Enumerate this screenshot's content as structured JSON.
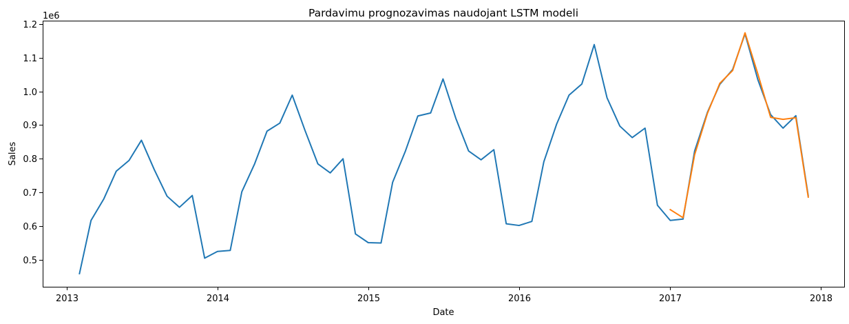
{
  "chart_data": {
    "type": "line",
    "title": "Pardavimu prognozavimas naudojant LSTM modeli",
    "xlabel": "Date",
    "ylabel": "Sales",
    "y_offset_text": "1e6",
    "x_tick_labels": [
      "2013",
      "2014",
      "2015",
      "2016",
      "2017",
      "2018"
    ],
    "x_ticks": [
      "2013-01-01",
      "2014-01-01",
      "2015-01-01",
      "2016-01-01",
      "2017-01-01",
      "2018-01-01"
    ],
    "y_ticks": [
      0.5,
      0.6,
      0.7,
      0.8,
      0.9,
      1.0,
      1.1,
      1.2
    ],
    "y_tick_labels": [
      "0.5",
      "0.6",
      "0.7",
      "0.8",
      "0.9",
      "1.0",
      "1.1",
      "1.2"
    ],
    "xlim": [
      "2012-11-04",
      "2018-02-26"
    ],
    "ylim": [
      0.42,
      1.21
    ],
    "y_unit_multiplier": 1000000,
    "grid": false,
    "legend": "none",
    "series": [
      {
        "color": "#1f77b4",
        "x": [
          "2013-02-01",
          "2013-03-01",
          "2013-04-01",
          "2013-05-01",
          "2013-06-01",
          "2013-07-01",
          "2013-08-01",
          "2013-09-01",
          "2013-10-01",
          "2013-11-01",
          "2013-12-01",
          "2014-01-01",
          "2014-02-01",
          "2014-03-01",
          "2014-04-01",
          "2014-05-01",
          "2014-06-01",
          "2014-07-01",
          "2014-08-01",
          "2014-09-01",
          "2014-10-01",
          "2014-11-01",
          "2014-12-01",
          "2015-01-01",
          "2015-02-01",
          "2015-03-01",
          "2015-04-01",
          "2015-05-01",
          "2015-06-01",
          "2015-07-01",
          "2015-08-01",
          "2015-09-01",
          "2015-10-01",
          "2015-11-01",
          "2015-12-01",
          "2016-01-01",
          "2016-02-01",
          "2016-03-01",
          "2016-04-01",
          "2016-05-01",
          "2016-06-01",
          "2016-07-01",
          "2016-08-01",
          "2016-09-01",
          "2016-10-01",
          "2016-11-01",
          "2016-12-01",
          "2017-01-01",
          "2017-02-01",
          "2017-03-01",
          "2017-04-01",
          "2017-05-01",
          "2017-06-01",
          "2017-07-01",
          "2017-08-01",
          "2017-09-01",
          "2017-10-01",
          "2017-11-01",
          "2017-12-01"
        ],
        "values": [
          0.459,
          0.617,
          0.681,
          0.763,
          0.795,
          0.855,
          0.768,
          0.689,
          0.656,
          0.691,
          0.505,
          0.525,
          0.528,
          0.702,
          0.785,
          0.882,
          0.906,
          0.989,
          0.884,
          0.785,
          0.758,
          0.8,
          0.577,
          0.551,
          0.55,
          0.73,
          0.823,
          0.927,
          0.936,
          1.037,
          0.92,
          0.823,
          0.797,
          0.827,
          0.607,
          0.602,
          0.614,
          0.791,
          0.903,
          0.989,
          1.022,
          1.139,
          0.981,
          0.897,
          0.863,
          0.891,
          0.662,
          0.617,
          0.621,
          0.823,
          0.938,
          1.021,
          1.065,
          1.171,
          1.035,
          0.931,
          0.891,
          0.928,
          0.69
        ]
      },
      {
        "color": "#ff7f0e",
        "x": [
          "2017-01-01",
          "2017-02-01",
          "2017-03-01",
          "2017-04-01",
          "2017-05-01",
          "2017-06-01",
          "2017-07-01",
          "2017-08-01",
          "2017-09-01",
          "2017-10-01",
          "2017-11-01",
          "2017-12-01"
        ],
        "values": [
          0.649,
          0.625,
          0.812,
          0.935,
          1.024,
          1.062,
          1.174,
          1.052,
          0.923,
          0.917,
          0.922,
          0.686
        ]
      }
    ]
  }
}
